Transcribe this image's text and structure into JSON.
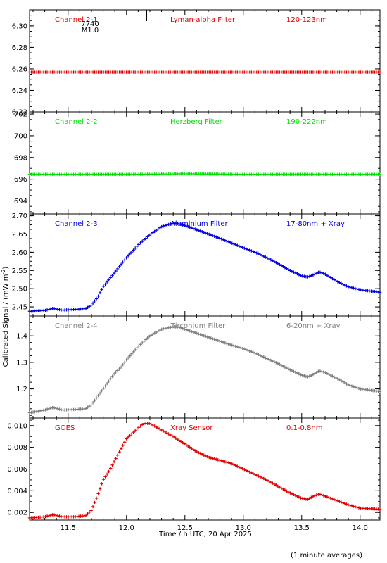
{
  "figure": {
    "ylabel": "Calibrated Signal / (mW m",
    "ylabel_sup": "-2",
    "ylabel_close": ")",
    "xlabel": "Time / h UTC, 20 Apr 2025",
    "footnote": "(1 minute averages)",
    "marker_label_top": "7740",
    "marker_label_bottom": "M1.0",
    "marker_time": 12.17
  },
  "chart_data": [
    {
      "type": "scatter",
      "channel_label": "Channel 2-1",
      "filter_label": "Lyman-alpha Filter",
      "range_label": "120-123nm",
      "color": "#e00000",
      "xlim": [
        11.17,
        14.17
      ],
      "ylim": [
        6.22,
        6.315
      ],
      "y_ticks": [
        6.22,
        6.24,
        6.26,
        6.28,
        6.3
      ],
      "y_tick_labels": [
        "6.22",
        "6.24",
        "6.26",
        "6.28",
        "6.30"
      ],
      "series": [
        {
          "x": [
            11.17,
            11.5,
            12.0,
            12.5,
            13.0,
            13.5,
            14.0,
            14.17
          ],
          "y": [
            6.257,
            6.257,
            6.257,
            6.257,
            6.257,
            6.257,
            6.257,
            6.257
          ]
        }
      ]
    },
    {
      "type": "scatter",
      "channel_label": "Channel 2-2",
      "filter_label": "Herzberg Filter",
      "range_label": "190-222nm",
      "color": "#00e000",
      "xlim": [
        11.17,
        14.17
      ],
      "ylim": [
        692.8,
        702.2
      ],
      "y_ticks": [
        694,
        696,
        698,
        700,
        702
      ],
      "y_tick_labels": [
        "694",
        "696",
        "698",
        "700",
        "702"
      ],
      "series": [
        {
          "x": [
            11.17,
            11.5,
            12.0,
            12.5,
            13.0,
            13.5,
            14.0,
            14.17
          ],
          "y": [
            696.45,
            696.45,
            696.45,
            696.5,
            696.45,
            696.45,
            696.45,
            696.45
          ]
        }
      ]
    },
    {
      "type": "scatter",
      "channel_label": "Channel 2-3",
      "filter_label": "Aluminium Filter",
      "range_label": "17-80nm + Xray",
      "color": "#0000e0",
      "xlim": [
        11.17,
        14.17
      ],
      "ylim": [
        2.425,
        2.705
      ],
      "y_ticks": [
        2.45,
        2.5,
        2.55,
        2.6,
        2.65,
        2.7
      ],
      "y_tick_labels": [
        "2.45",
        "2.50",
        "2.55",
        "2.60",
        "2.65",
        "2.70"
      ],
      "series": [
        {
          "x": [
            11.17,
            11.3,
            11.37,
            11.45,
            11.55,
            11.65,
            11.7,
            11.75,
            11.8,
            11.85,
            11.9,
            11.95,
            12.0,
            12.1,
            12.2,
            12.3,
            12.4,
            12.45,
            12.5,
            12.6,
            12.7,
            12.8,
            12.9,
            13.0,
            13.1,
            13.2,
            13.3,
            13.4,
            13.5,
            13.55,
            13.6,
            13.65,
            13.7,
            13.8,
            13.9,
            14.0,
            14.17
          ],
          "y": [
            2.438,
            2.44,
            2.446,
            2.441,
            2.443,
            2.445,
            2.455,
            2.475,
            2.505,
            2.525,
            2.545,
            2.565,
            2.585,
            2.62,
            2.648,
            2.67,
            2.68,
            2.678,
            2.673,
            2.662,
            2.65,
            2.638,
            2.625,
            2.612,
            2.6,
            2.585,
            2.568,
            2.55,
            2.535,
            2.532,
            2.538,
            2.546,
            2.54,
            2.52,
            2.505,
            2.497,
            2.49
          ]
        }
      ]
    },
    {
      "type": "scatter",
      "channel_label": "Channel 2-4",
      "filter_label": "Zirconium Filter",
      "range_label": "6-20nm + Xray",
      "color": "#808080",
      "xlim": [
        11.17,
        14.17
      ],
      "ylim": [
        1.09,
        1.475
      ],
      "y_ticks": [
        1.2,
        1.3,
        1.4
      ],
      "y_tick_labels": [
        "1.2",
        "1.3",
        "1.4"
      ],
      "series": [
        {
          "x": [
            11.17,
            11.3,
            11.37,
            11.45,
            11.55,
            11.65,
            11.7,
            11.75,
            11.8,
            11.85,
            11.9,
            11.95,
            12.0,
            12.1,
            12.2,
            12.3,
            12.4,
            12.45,
            12.5,
            12.6,
            12.7,
            12.8,
            12.9,
            13.0,
            13.1,
            13.2,
            13.3,
            13.4,
            13.5,
            13.55,
            13.6,
            13.65,
            13.7,
            13.8,
            13.9,
            14.0,
            14.17
          ],
          "y": [
            1.11,
            1.12,
            1.13,
            1.12,
            1.122,
            1.125,
            1.14,
            1.17,
            1.2,
            1.23,
            1.26,
            1.28,
            1.31,
            1.36,
            1.4,
            1.425,
            1.435,
            1.433,
            1.425,
            1.41,
            1.395,
            1.38,
            1.365,
            1.352,
            1.335,
            1.315,
            1.295,
            1.272,
            1.252,
            1.245,
            1.255,
            1.268,
            1.262,
            1.24,
            1.215,
            1.2,
            1.19
          ]
        }
      ]
    },
    {
      "type": "scatter",
      "channel_label": "GOES",
      "filter_label": "Xray Sensor",
      "range_label": "0.1-0.8nm",
      "color": "#e00000",
      "xlim": [
        11.17,
        14.17
      ],
      "ylim": [
        0.0013,
        0.0107
      ],
      "y_ticks": [
        0.002,
        0.004,
        0.006,
        0.008,
        0.01
      ],
      "y_tick_labels": [
        "0.002",
        "0.004",
        "0.006",
        "0.008",
        "0.010"
      ],
      "x_ticks": [
        11.5,
        12.0,
        12.5,
        13.0,
        13.5,
        14.0
      ],
      "x_tick_labels": [
        "11.5",
        "12.0",
        "12.5",
        "13.0",
        "13.5",
        "14.0"
      ],
      "series": [
        {
          "x": [
            11.17,
            11.3,
            11.37,
            11.45,
            11.55,
            11.65,
            11.7,
            11.75,
            11.8,
            11.85,
            11.9,
            11.95,
            12.0,
            12.1,
            12.15,
            12.2,
            12.3,
            12.4,
            12.5,
            12.6,
            12.7,
            12.8,
            12.9,
            13.0,
            13.1,
            13.2,
            13.3,
            13.4,
            13.5,
            13.55,
            13.6,
            13.65,
            13.7,
            13.8,
            13.9,
            14.0,
            14.17
          ],
          "y": [
            0.0015,
            0.0016,
            0.0018,
            0.0016,
            0.0016,
            0.0017,
            0.0022,
            0.0035,
            0.005,
            0.0058,
            0.0068,
            0.0078,
            0.0088,
            0.0098,
            0.0102,
            0.0102,
            0.0096,
            0.009,
            0.0083,
            0.0076,
            0.0071,
            0.0068,
            0.0065,
            0.006,
            0.0055,
            0.005,
            0.0044,
            0.0038,
            0.0033,
            0.0032,
            0.0035,
            0.0037,
            0.0035,
            0.0031,
            0.0027,
            0.0024,
            0.0023
          ]
        }
      ]
    }
  ]
}
